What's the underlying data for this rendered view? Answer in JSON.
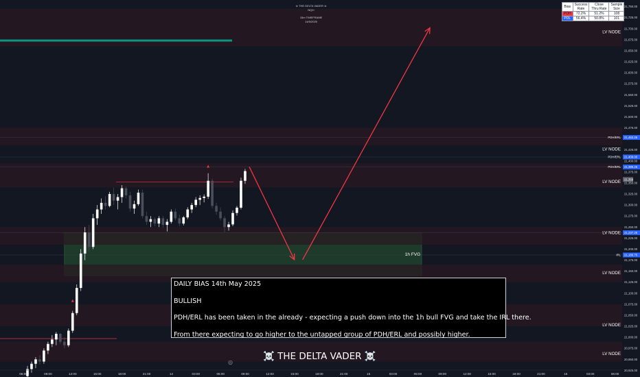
{
  "watermark": {
    "title": "☠ THE DELTA VADER ☠",
    "symbol": "NQ1!",
    "timeframe": "15m TIMEFRAME",
    "date": "14/5/2025"
  },
  "stats_table": {
    "headers": [
      "Bias",
      "Success Rate",
      "Close Thru Rate",
      "Sample Size"
    ],
    "rows": [
      {
        "bias": "PDH",
        "success_rate": "72.2%",
        "close_thru_rate": "51.2%",
        "sample_size": "108",
        "color": "#f23645"
      },
      {
        "bias": "PDL",
        "success_rate": "56.4%",
        "close_thru_rate": "50.8%",
        "sample_size": "101",
        "color": "#2962ff"
      }
    ]
  },
  "bias_box": {
    "title": "DAILY BIAS 14th May 2025",
    "bias": "BULLISH",
    "line1": "PDH/ERL has been taken in the already - expecting a push down into the 1h bull FVG and take the IRL there.",
    "line2": "From there expecting to go higher to the untapped group of PDH/ERL and possibly higher."
  },
  "brand": "☠️ THE DELTA VADER ☠️",
  "camera_icon": "camera-icon",
  "colors": {
    "background": "#131722",
    "up_candle": "#ffffff",
    "down_candle": "#4a4f5c",
    "red_zone": "#2a1a22",
    "green_zone": "#1e3a2a",
    "arrow": "#f23645",
    "teal": "#089981",
    "axis_text": "#d1d4dc",
    "tag_blue": "#2962ff"
  },
  "chart_data": {
    "type": "candlestick",
    "symbol": "NQ1!",
    "x_tick_labels": [
      "06:00",
      "09:00",
      "12:00",
      "15:00",
      "18:00",
      "21:00",
      "14",
      "03:00",
      "06:00",
      "09:00",
      "12:00",
      "15:00",
      "18:00",
      "21:00",
      "15",
      "03:00",
      "06:00",
      "09:00",
      "12:00",
      "15:00",
      "18:00",
      "21:00",
      "16",
      "03:00",
      "06:00"
    ],
    "y_ticks": [
      "21,750.00",
      "21,725.00",
      "21,700.00",
      "21,675.00",
      "21,650.00",
      "21,625.00",
      "21,600.00",
      "21,575.00",
      "21,550.00",
      "21,525.00",
      "21,500.00",
      "21,475.00",
      "21,450.00",
      "21,425.00",
      "21,400.00",
      "21,375.00",
      "21,350.00",
      "21,325.00",
      "21,300.00",
      "21,275.00",
      "21,250.00",
      "21,225.00",
      "21,200.00",
      "21,175.00",
      "21,150.00",
      "21,125.00",
      "21,100.00",
      "21,075.00",
      "21,050.00",
      "21,025.00",
      "21,000.00",
      "20,975.00",
      "20,950.00",
      "20,925.00"
    ],
    "ylim": [
      20910,
      21765
    ],
    "price_tags": [
      {
        "label": "PDH/ERL",
        "value": "21,453.25",
        "price": 21453.25
      },
      {
        "label": "PDH/ERL",
        "value": "21,409.00",
        "price": 21409.0
      },
      {
        "label": "PDH/ERL",
        "value": "21,386.25",
        "price": 21386.25
      },
      {
        "label": "",
        "value": "21,237.25",
        "price": 21237.25
      },
      {
        "label": "IRL",
        "value": "21,186.75",
        "price": 21186.75
      }
    ],
    "current_price": "21,358",
    "zones": [
      {
        "kind": "lv-node-band",
        "top": 21745,
        "bottom": 21660
      },
      {
        "kind": "lv-node-band",
        "top": 21475,
        "bottom": 21435
      },
      {
        "kind": "lv-node-band",
        "top": 21395,
        "bottom": 21340
      },
      {
        "kind": "fvg",
        "label": "1h FVG",
        "top": 21237.25,
        "bottom": 21140
      },
      {
        "kind": "lv-node-band",
        "top": 21250,
        "bottom": 21210
      },
      {
        "kind": "lv-node-band",
        "top": 21165,
        "bottom": 21125
      },
      {
        "kind": "lv-node-band",
        "top": 21075,
        "bottom": 21025
      },
      {
        "kind": "lv-node-band",
        "top": 20990,
        "bottom": 20945
      }
    ],
    "lv_node_labels": [
      {
        "text": "LV NODE",
        "price": 21693
      },
      {
        "text": "LV NODE",
        "price": 21427
      },
      {
        "text": "LV NODE",
        "price": 21353
      },
      {
        "text": "LV NODE",
        "price": 21237
      },
      {
        "text": "LV NODE",
        "price": 21146
      },
      {
        "text": "LV NODE",
        "price": 21028
      },
      {
        "text": "LV NODE",
        "price": 20963
      }
    ],
    "levels": [
      {
        "kind": "teal-level",
        "price": 21673
      },
      {
        "kind": "red-level",
        "price": 21352
      },
      {
        "kind": "red-level",
        "price": 20997
      }
    ],
    "arrows": [
      {
        "from": {
          "bar": 54,
          "price": 21387
        },
        "to": {
          "bar": 65,
          "price": 21176
        }
      },
      {
        "from": {
          "bar": 67,
          "price": 21176
        },
        "to": {
          "bar": 98,
          "price": 21702
        }
      }
    ],
    "triangles": [
      {
        "bar": 11,
        "price": 21080
      },
      {
        "bar": 44,
        "price": 21385
      }
    ],
    "candles": [
      [
        20912,
        20935,
        20905,
        20928
      ],
      [
        20928,
        20945,
        20920,
        20940
      ],
      [
        20940,
        20955,
        20930,
        20950
      ],
      [
        20950,
        20960,
        20938,
        20945
      ],
      [
        20945,
        20975,
        20940,
        20970
      ],
      [
        20970,
        20990,
        20962,
        20985
      ],
      [
        20985,
        21005,
        20978,
        20995
      ],
      [
        20995,
        21012,
        20982,
        21008
      ],
      [
        21008,
        21010,
        20985,
        20990
      ],
      [
        20990,
        21000,
        20975,
        20982
      ],
      [
        20982,
        21020,
        20978,
        21015
      ],
      [
        21015,
        21060,
        21010,
        21055
      ],
      [
        21055,
        21120,
        21050,
        21112
      ],
      [
        21112,
        21200,
        21105,
        21190
      ],
      [
        21190,
        21250,
        21175,
        21238
      ],
      [
        21238,
        21255,
        21195,
        21205
      ],
      [
        21205,
        21280,
        21200,
        21270
      ],
      [
        21270,
        21300,
        21255,
        21290
      ],
      [
        21290,
        21315,
        21280,
        21305
      ],
      [
        21305,
        21320,
        21290,
        21298
      ],
      [
        21298,
        21330,
        21295,
        21325
      ],
      [
        21325,
        21340,
        21300,
        21310
      ],
      [
        21310,
        21325,
        21290,
        21318
      ],
      [
        21318,
        21345,
        21305,
        21338
      ],
      [
        21338,
        21342,
        21315,
        21322
      ],
      [
        21322,
        21330,
        21285,
        21292
      ],
      [
        21292,
        21310,
        21280,
        21302
      ],
      [
        21302,
        21335,
        21298,
        21328
      ],
      [
        21328,
        21335,
        21270,
        21275
      ],
      [
        21275,
        21285,
        21255,
        21262
      ],
      [
        21262,
        21275,
        21250,
        21268
      ],
      [
        21268,
        21272,
        21252,
        21258
      ],
      [
        21258,
        21275,
        21250,
        21270
      ],
      [
        21270,
        21275,
        21248,
        21255
      ],
      [
        21255,
        21268,
        21240,
        21262
      ],
      [
        21262,
        21290,
        21258,
        21285
      ],
      [
        21285,
        21292,
        21265,
        21270
      ],
      [
        21270,
        21278,
        21252,
        21258
      ],
      [
        21258,
        21275,
        21254,
        21272
      ],
      [
        21272,
        21295,
        21268,
        21290
      ],
      [
        21290,
        21305,
        21282,
        21300
      ],
      [
        21300,
        21318,
        21295,
        21312
      ],
      [
        21312,
        21322,
        21300,
        21316
      ],
      [
        21316,
        21324,
        21306,
        21319
      ],
      [
        21319,
        21372,
        21314,
        21355
      ],
      [
        21355,
        21360,
        21292,
        21298
      ],
      [
        21298,
        21305,
        21278,
        21285
      ],
      [
        21285,
        21295,
        21265,
        21270
      ],
      [
        21270,
        21275,
        21238,
        21250
      ],
      [
        21250,
        21262,
        21242,
        21256
      ],
      [
        21256,
        21288,
        21252,
        21282
      ],
      [
        21282,
        21298,
        21276,
        21294
      ],
      [
        21294,
        21362,
        21290,
        21355
      ],
      [
        21355,
        21382,
        21348,
        21377
      ]
    ]
  }
}
